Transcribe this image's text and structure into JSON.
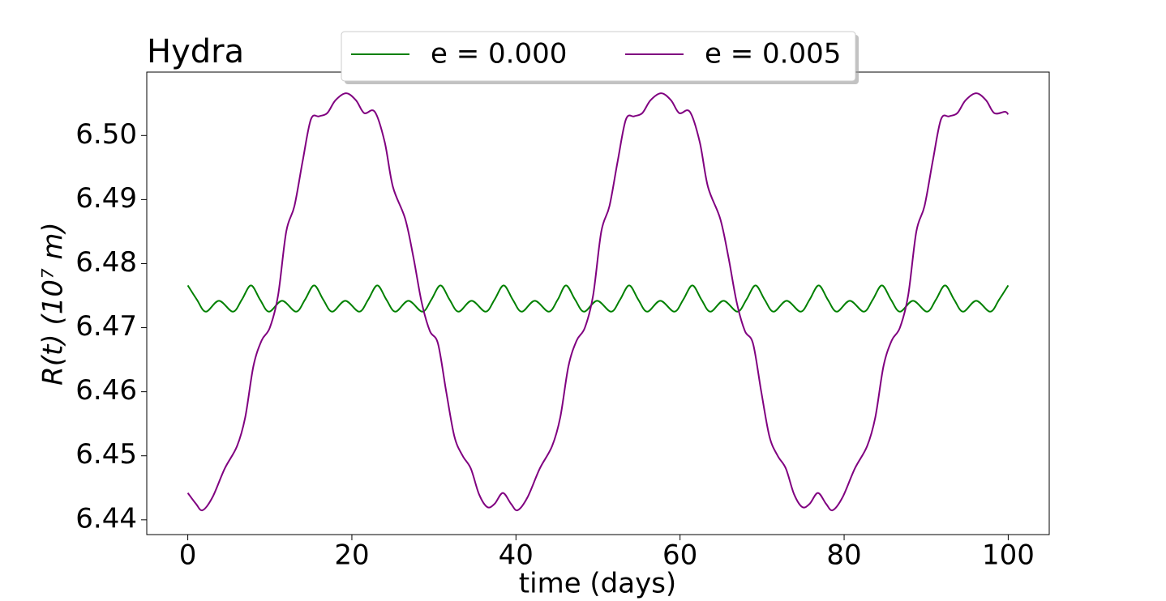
{
  "chart_data": {
    "type": "line",
    "title": "Hydra",
    "xlabel": "time (days)",
    "ylabel": "R(t) (10⁷ m)",
    "xlim": [
      -5,
      105
    ],
    "ylim": [
      6.4377,
      6.5099
    ],
    "xticks": [
      0,
      20,
      40,
      60,
      80,
      100
    ],
    "yticks": [
      6.44,
      6.45,
      6.46,
      6.47,
      6.48,
      6.49,
      {
        "value": 6.5,
        "label": "6.50"
      }
    ],
    "legend": "upper center",
    "series": [
      {
        "name": "e = 0.000",
        "color": "#008000",
        "x": [
          0,
          1.1,
          2.2,
          3.8,
          5.5,
          6.6,
          7.7,
          8.8,
          9.9,
          11.5,
          13.2,
          14.3,
          15.4,
          16.5,
          17.6,
          19.2,
          20.9,
          22.0,
          23.1,
          24.2,
          25.3,
          26.9,
          28.6,
          29.7,
          30.8,
          31.9,
          33.0,
          34.6,
          36.3,
          37.4,
          38.5,
          39.6,
          40.7,
          42.3,
          44.0,
          45.1,
          46.1,
          47.2,
          48.3,
          49.9,
          51.6,
          52.7,
          53.8,
          54.9,
          56.0,
          57.6,
          59.3,
          60.4,
          61.5,
          62.6,
          63.7,
          65.3,
          67.0,
          68.1,
          69.2,
          70.3,
          71.4,
          73.0,
          74.7,
          75.8,
          76.9,
          78.0,
          79.1,
          80.7,
          82.4,
          83.5,
          84.6,
          85.7,
          86.8,
          88.4,
          90.1,
          91.2,
          92.3,
          93.4,
          94.5,
          96.1,
          97.8,
          98.9,
          100
        ],
        "values": [
          6.4766,
          6.4744,
          6.4725,
          6.4742,
          6.4725,
          6.4744,
          6.4766,
          6.4744,
          6.4725,
          6.4742,
          6.4725,
          6.4744,
          6.4766,
          6.4744,
          6.4725,
          6.4742,
          6.4725,
          6.4744,
          6.4766,
          6.4744,
          6.4725,
          6.4742,
          6.4725,
          6.4744,
          6.4766,
          6.4744,
          6.4725,
          6.4742,
          6.4725,
          6.4744,
          6.4766,
          6.4744,
          6.4725,
          6.4742,
          6.4725,
          6.4744,
          6.4766,
          6.4744,
          6.4725,
          6.4742,
          6.4725,
          6.4744,
          6.4766,
          6.4744,
          6.4725,
          6.4742,
          6.4725,
          6.4744,
          6.4766,
          6.4744,
          6.4725,
          6.4742,
          6.4725,
          6.4744,
          6.4766,
          6.4744,
          6.4725,
          6.4742,
          6.4725,
          6.4744,
          6.4766,
          6.4744,
          6.4725,
          6.4742,
          6.4725,
          6.4744,
          6.4766,
          6.4744,
          6.4725,
          6.4742,
          6.4725,
          6.4744,
          6.4766,
          6.4744,
          6.4725,
          6.4742,
          6.4725,
          6.4744,
          6.4766
        ]
      },
      {
        "name": "e = 0.005",
        "color": "#800080",
        "x": [
          0,
          1.0,
          1.8,
          3,
          4.5,
          6,
          7,
          8,
          9,
          10,
          11,
          12,
          13,
          14,
          15,
          16,
          17,
          18,
          19.3,
          20.5,
          21.5,
          22.8,
          24,
          25,
          26.5,
          27.5,
          28.5,
          29.5,
          30.5,
          31.5,
          32.5,
          33.5,
          34.5,
          35.5,
          36.5,
          37.4,
          38.4,
          39.4,
          40.2,
          41.4,
          42.9,
          44.4,
          45.4,
          46.4,
          47.4,
          48.4,
          49.4,
          50.4,
          51.4,
          52.4,
          53.4,
          54.4,
          55.4,
          56.4,
          57.7,
          58.9,
          59.9,
          61.2,
          62.4,
          63.4,
          64.9,
          65.9,
          66.9,
          67.9,
          68.9,
          69.9,
          70.9,
          71.9,
          72.9,
          73.9,
          74.9,
          75.8,
          76.8,
          77.8,
          78.6,
          79.8,
          81.3,
          82.8,
          83.8,
          84.8,
          85.8,
          86.8,
          87.8,
          88.8,
          89.8,
          90.8,
          91.8,
          92.8,
          93.8,
          94.8,
          96.1,
          97.3,
          98.3,
          99.6,
          100
        ],
        "values": [
          6.4442,
          6.4425,
          6.4415,
          6.4435,
          6.448,
          6.4515,
          6.456,
          6.464,
          6.468,
          6.47,
          6.475,
          6.485,
          6.489,
          6.496,
          6.5025,
          6.503,
          6.5035,
          6.5055,
          6.5066,
          6.5055,
          6.5035,
          6.5037,
          6.499,
          6.492,
          6.487,
          6.481,
          6.474,
          6.4695,
          6.4675,
          6.46,
          6.453,
          6.45,
          6.448,
          6.444,
          6.442,
          6.4425,
          6.4442,
          6.4425,
          6.4415,
          6.4435,
          6.448,
          6.4515,
          6.456,
          6.464,
          6.468,
          6.47,
          6.475,
          6.485,
          6.489,
          6.496,
          6.5025,
          6.503,
          6.5035,
          6.5055,
          6.5066,
          6.5055,
          6.5035,
          6.5037,
          6.499,
          6.492,
          6.487,
          6.481,
          6.474,
          6.4695,
          6.4675,
          6.46,
          6.453,
          6.45,
          6.448,
          6.444,
          6.442,
          6.4425,
          6.4442,
          6.4425,
          6.4415,
          6.4435,
          6.448,
          6.4515,
          6.456,
          6.464,
          6.468,
          6.47,
          6.475,
          6.485,
          6.489,
          6.496,
          6.5025,
          6.503,
          6.5035,
          6.5055,
          6.5066,
          6.5055,
          6.5035,
          6.5037,
          6.5033
        ]
      }
    ]
  }
}
